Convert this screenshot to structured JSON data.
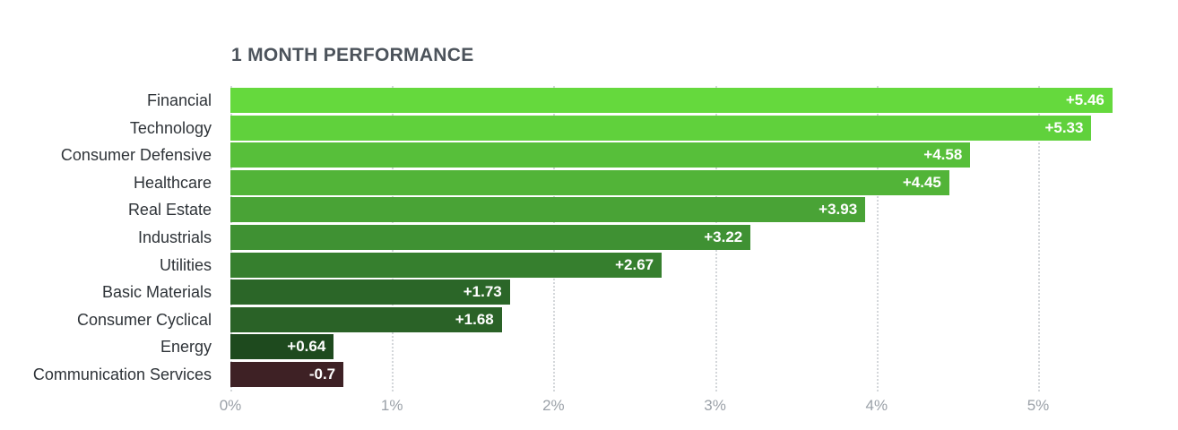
{
  "chart_data": {
    "type": "bar",
    "orientation": "horizontal",
    "title": "1 MONTH PERFORMANCE",
    "categories": [
      "Financial",
      "Technology",
      "Consumer Defensive",
      "Healthcare",
      "Real Estate",
      "Industrials",
      "Utilities",
      "Basic Materials",
      "Consumer Cyclical",
      "Energy",
      "Communication Services"
    ],
    "values": [
      5.46,
      5.33,
      4.58,
      4.45,
      3.93,
      3.22,
      2.67,
      1.73,
      1.68,
      0.64,
      -0.7
    ],
    "value_labels": [
      "+5.46",
      "+5.33",
      "+4.58",
      "+4.45",
      "+3.93",
      "+3.22",
      "+2.67",
      "+1.73",
      "+1.68",
      "+0.64",
      "-0.7"
    ],
    "bar_colors": [
      "#65d93d",
      "#60d13c",
      "#57bf3a",
      "#52b438",
      "#49a336",
      "#3f9133",
      "#367f2e",
      "#2b6628",
      "#2a6227",
      "#1e4a1e",
      "#3e2125"
    ],
    "x_ticks": [
      "0%",
      "1%",
      "2%",
      "3%",
      "4%",
      "5%"
    ],
    "xlabel": "",
    "ylabel": "",
    "xlim": [
      0,
      5.86
    ],
    "grid": "dotted-vertical",
    "colors": {
      "title_text": "#4c535b",
      "category_text": "#2e3338",
      "axis_text": "#9ba1a8",
      "gridline": "#d4d7da",
      "value_text": "#ffffff",
      "background": "#ffffff"
    }
  }
}
